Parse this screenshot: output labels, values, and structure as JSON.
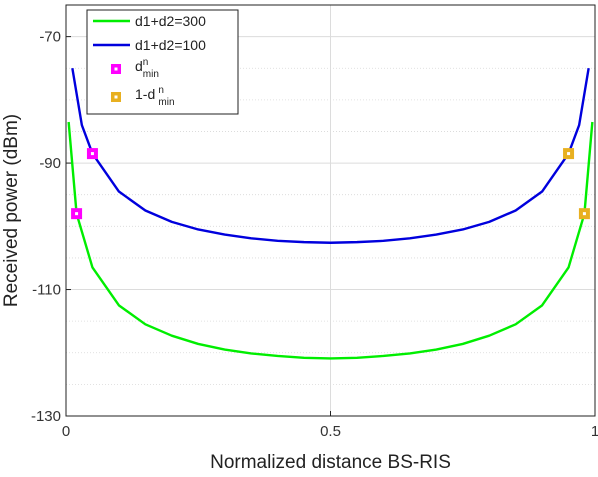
{
  "chart_data": {
    "type": "line",
    "title": "",
    "xlabel": "Normalized distance BS-RIS",
    "ylabel": "Received power (dBm)",
    "xlim": [
      0,
      1
    ],
    "ylim": [
      -130,
      -65
    ],
    "xticks": [
      0,
      0.5,
      1
    ],
    "xtick_labels": [
      "0",
      "0.5",
      "1"
    ],
    "yticks": [
      -130,
      -110,
      -90,
      -70
    ],
    "ytick_labels": [
      "-130",
      "-110",
      "-90",
      "-70"
    ],
    "grid": true,
    "minor_grid_y": true,
    "legend_position": "top-left",
    "series": [
      {
        "name": "d1+d2=300",
        "color": "#00ee00",
        "x": [
          0.005,
          0.02,
          0.05,
          0.1,
          0.15,
          0.2,
          0.25,
          0.3,
          0.35,
          0.4,
          0.45,
          0.5,
          0.55,
          0.6,
          0.65,
          0.7,
          0.75,
          0.8,
          0.85,
          0.9,
          0.95,
          0.98,
          0.995
        ],
        "y": [
          -83.5,
          -98,
          -106.5,
          -112.5,
          -115.5,
          -117.3,
          -118.6,
          -119.5,
          -120.1,
          -120.5,
          -120.8,
          -120.9,
          -120.8,
          -120.5,
          -120.1,
          -119.5,
          -118.6,
          -117.3,
          -115.5,
          -112.5,
          -106.5,
          -98,
          -83.5
        ]
      },
      {
        "name": "d1+d2=100",
        "color": "#0000dd",
        "x": [
          0.012,
          0.03,
          0.05,
          0.1,
          0.15,
          0.2,
          0.25,
          0.3,
          0.35,
          0.4,
          0.45,
          0.5,
          0.55,
          0.6,
          0.65,
          0.7,
          0.75,
          0.8,
          0.85,
          0.9,
          0.95,
          0.97,
          0.988
        ],
        "y": [
          -75,
          -84,
          -88.5,
          -94.5,
          -97.5,
          -99.3,
          -100.5,
          -101.3,
          -101.9,
          -102.3,
          -102.5,
          -102.6,
          -102.5,
          -102.3,
          -101.9,
          -101.3,
          -100.5,
          -99.3,
          -97.5,
          -94.5,
          -88.5,
          -84,
          -75
        ]
      }
    ],
    "markers": [
      {
        "name": "d",
        "sup": "n",
        "sub": "min",
        "color": "#ff00ff",
        "points": [
          [
            0.02,
            -98
          ],
          [
            0.05,
            -88.5
          ]
        ]
      },
      {
        "name": "1-d",
        "sup": "n",
        "sub": "min",
        "color": "#e8b020",
        "points": [
          [
            0.98,
            -98
          ],
          [
            0.95,
            -88.5
          ]
        ]
      }
    ]
  }
}
